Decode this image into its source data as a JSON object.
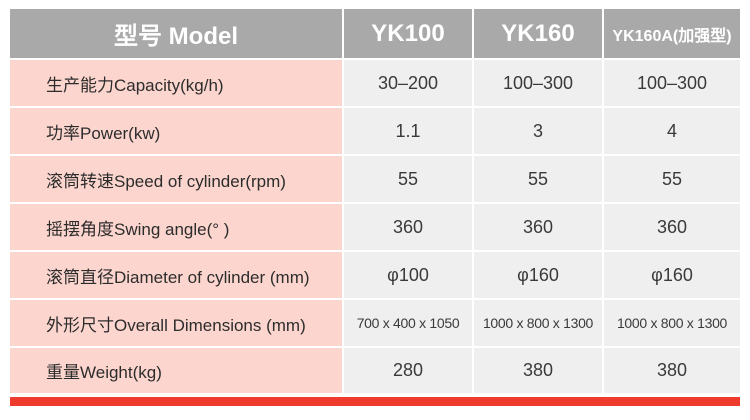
{
  "table": {
    "headers": [
      "型号 Model",
      "YK100",
      "YK160",
      "YK160A(加强型)"
    ],
    "rows": [
      {
        "label": "生产能力Capacity(kg/h)",
        "values": [
          "30–200",
          "100–300",
          "100–300"
        ]
      },
      {
        "label": "功率Power(kw)",
        "values": [
          "1.1",
          "3",
          "4"
        ]
      },
      {
        "label": "滚筒转速Speed of cylinder(rpm)",
        "values": [
          "55",
          "55",
          "55"
        ]
      },
      {
        "label": "摇摆角度Swing angle(°  )",
        "values": [
          "360",
          "360",
          "360"
        ]
      },
      {
        "label": "滚筒直径Diameter of cylinder (mm)",
        "values": [
          "φ100",
          "φ160",
          "φ160"
        ]
      },
      {
        "label": "外形尺寸Overall Dimensions (mm)",
        "values": [
          "700 x 400 x 1050",
          "1000 x 800 x 1300",
          "1000 x 800 x 1300"
        ]
      },
      {
        "label": "重量Weight(kg)",
        "values": [
          "280",
          "380",
          "380"
        ]
      }
    ]
  },
  "colors": {
    "header_bg": "#a9a9a9",
    "label_bg": "#fcd6ce",
    "value_bg": "#efefef",
    "accent_bar": "#ef3b2e"
  }
}
